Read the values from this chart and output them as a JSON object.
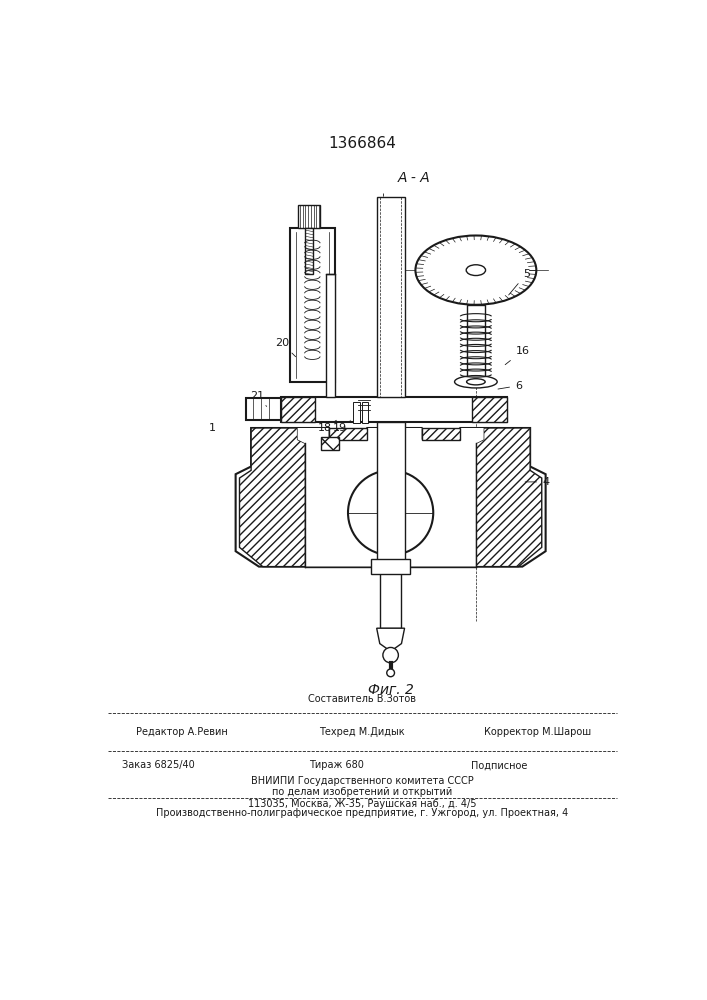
{
  "patent_number": "1366864",
  "section_label": "А - А",
  "fig_label": "Фиг. 2",
  "bg_color": "#ffffff",
  "line_color": "#1a1a1a",
  "footer": {
    "editor_label": "Редактор А.Ревин",
    "composer_label": "Составитель В.Зотов",
    "corrector_label": "Корректор М.Шарош",
    "techred_label": "Техред М.Дидык",
    "order_label": "Заказ 6825/40",
    "circulation_label": "Тираж 680",
    "subscription_label": "Подписное",
    "org_line1": "ВНИИПИ Государственного комитета СССР",
    "org_line2": "по делам изобретений и открытий",
    "org_line3": "113035, Москва, Ж-35, Раушская наб., д. 4/5",
    "printer_line": "Производственно-полиграфическое предприятие, г. Ужгород, ул. Проектная, 4"
  }
}
